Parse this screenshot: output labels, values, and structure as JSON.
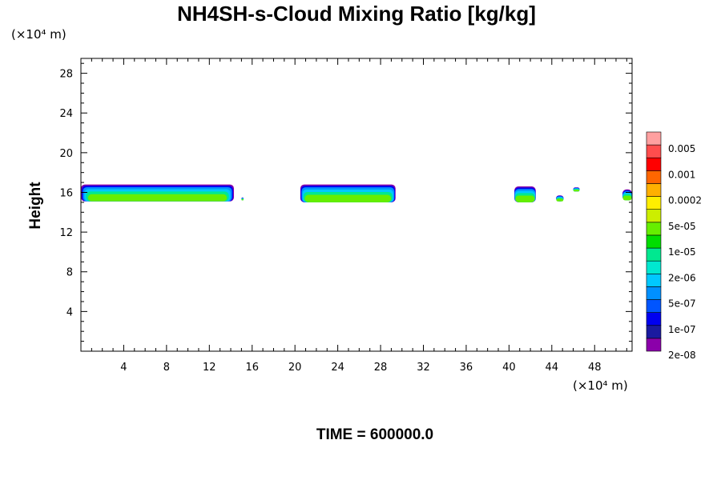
{
  "chart_data": {
    "type": "heatmap",
    "title": "NH4SH-s-Cloud Mixing Ratio [kg/kg]",
    "xlabel": "",
    "ylabel": "Height",
    "x_unit_label": "(×10⁴ m)",
    "y_unit_label": "(×10⁴ m)",
    "footer": "TIME = 600000.0",
    "xlim": [
      0,
      51.5
    ],
    "ylim": [
      0,
      29.5
    ],
    "x_ticks": [
      4,
      8,
      12,
      16,
      20,
      24,
      28,
      32,
      36,
      40,
      44,
      48
    ],
    "y_ticks": [
      4,
      8,
      12,
      16,
      20,
      24,
      28
    ],
    "colorbar": {
      "labels": [
        "0.005",
        "0.001",
        "0.0002",
        "5e-05",
        "1e-05",
        "2e-06",
        "5e-07",
        "1e-07",
        "2e-08"
      ],
      "colors": [
        "#8B00AA",
        "#1A1AA0",
        "#0000F0",
        "#0055FF",
        "#0090FF",
        "#00C8FF",
        "#00E8D0",
        "#00E890",
        "#00DD00",
        "#66EE00",
        "#CCEE00",
        "#FFEE00",
        "#FFB000",
        "#FF6600",
        "#FF0000",
        "#FF4D4D",
        "#FFA0A0"
      ]
    },
    "regions": [
      {
        "x0": 0,
        "x1": 14.3,
        "y_bottom": 15.1,
        "y_top": 16.8
      },
      {
        "x0": 15,
        "x1": 15.2,
        "y_bottom": 15.2,
        "y_top": 15.5
      },
      {
        "x0": 20.5,
        "x1": 29.4,
        "y_bottom": 15.0,
        "y_top": 16.8
      },
      {
        "x0": 40.5,
        "x1": 42.5,
        "y_bottom": 15.0,
        "y_top": 16.6
      },
      {
        "x0": 44.4,
        "x1": 45.1,
        "y_bottom": 15.1,
        "y_top": 15.7
      },
      {
        "x0": 46.0,
        "x1": 46.6,
        "y_bottom": 16.1,
        "y_top": 16.5
      },
      {
        "x0": 50.6,
        "x1": 51.5,
        "y_bottom": 15.2,
        "y_top": 16.3
      }
    ]
  }
}
